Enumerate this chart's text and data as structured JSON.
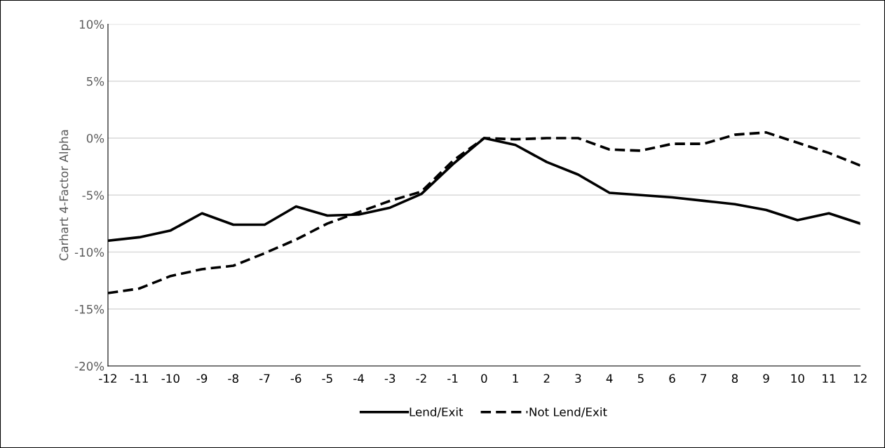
{
  "chart_data": {
    "type": "line",
    "ylabel": "Carhart 4-Factor Alpha",
    "x": [
      -12,
      -11,
      -10,
      -9,
      -8,
      -7,
      -6,
      -5,
      -4,
      -3,
      -2,
      -1,
      0,
      1,
      2,
      3,
      4,
      5,
      6,
      7,
      8,
      9,
      10,
      11,
      12
    ],
    "series": [
      {
        "name": "Lend/Exit",
        "color": "#000000",
        "line_style": "solid",
        "values": [
          -9.0,
          -8.7,
          -8.1,
          -6.6,
          -7.6,
          -7.6,
          -6.0,
          -6.8,
          -6.7,
          -6.1,
          -4.9,
          -2.3,
          0.0,
          -0.6,
          -2.1,
          -3.2,
          -4.8,
          -5.0,
          -5.2,
          -5.5,
          -5.8,
          -6.3,
          -7.2,
          -6.6,
          -7.5
        ]
      },
      {
        "name": "Not Lend/Exit",
        "color": "#000000",
        "line_style": "dashed",
        "values": [
          -13.6,
          -13.2,
          -12.1,
          -11.5,
          -11.2,
          -10.1,
          -8.9,
          -7.5,
          -6.5,
          -5.5,
          -4.7,
          -2.0,
          0.0,
          -0.1,
          0.0,
          0.0,
          -1.0,
          -1.1,
          -0.5,
          -0.5,
          0.3,
          0.5,
          -0.4,
          -1.3,
          -2.4
        ]
      }
    ],
    "xlim": [
      -12,
      12
    ],
    "xticks": [
      -12,
      -11,
      -10,
      -9,
      -8,
      -7,
      -6,
      -5,
      -4,
      -3,
      -2,
      -1,
      0,
      1,
      2,
      3,
      4,
      5,
      6,
      7,
      8,
      9,
      10,
      11,
      12
    ],
    "ylim": [
      -20,
      10
    ],
    "yticks": [
      {
        "value": -20,
        "label": "-20%"
      },
      {
        "value": -15,
        "label": "-15%"
      },
      {
        "value": -10,
        "label": "-10%"
      },
      {
        "value": -5,
        "label": "-5%"
      },
      {
        "value": 0,
        "label": "0%"
      },
      {
        "value": 5,
        "label": "5%"
      },
      {
        "value": 10,
        "label": "10%"
      }
    ],
    "grid": "y",
    "legend": "bottom"
  }
}
